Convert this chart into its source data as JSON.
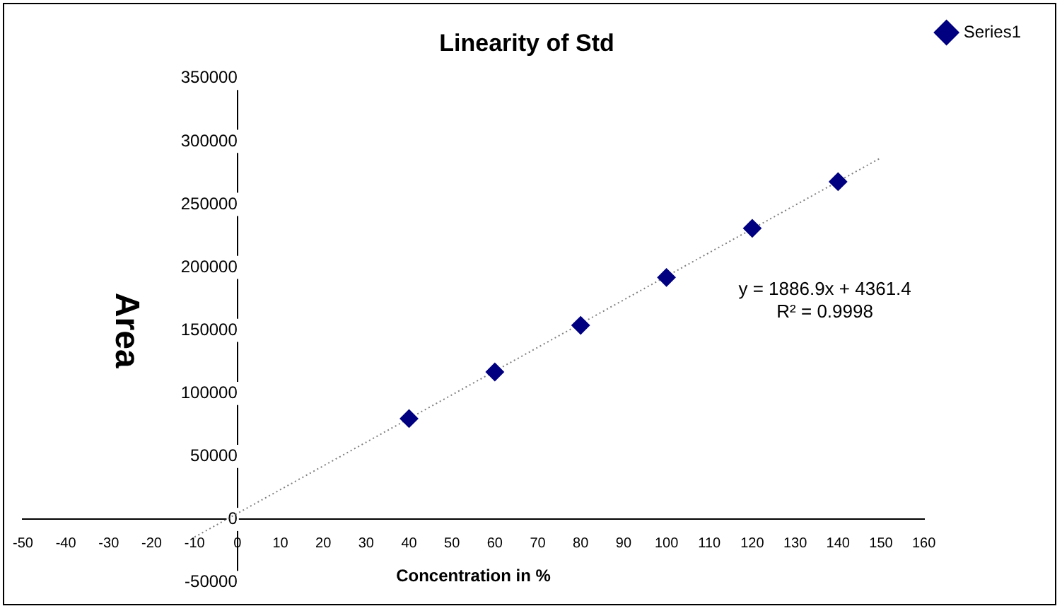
{
  "chart_data": {
    "type": "scatter",
    "title": "Linearity of Std",
    "xlabel": "Concentration in %",
    "ylabel": "Area",
    "xlim": [
      -50,
      160
    ],
    "xticks": [
      -50,
      -40,
      -30,
      -20,
      -10,
      0,
      10,
      20,
      30,
      40,
      50,
      60,
      70,
      80,
      90,
      100,
      110,
      120,
      130,
      140,
      150,
      160
    ],
    "ylim": [
      -50000,
      350000
    ],
    "yticks": [
      -50000,
      0,
      50000,
      100000,
      150000,
      200000,
      250000,
      300000,
      350000
    ],
    "x": [
      40,
      60,
      80,
      100,
      120,
      140
    ],
    "series": [
      {
        "name": "Series1",
        "color": "#000080",
        "values": [
          80000,
          117000,
          154000,
          192000,
          231000,
          268000
        ],
        "marker": "diamond"
      },
      {
        "type": "line",
        "color": "#808080",
        "line_style": "dotted",
        "marker": "none",
        "x": [
          -10,
          150
        ],
        "values": [
          -14000,
          287000
        ]
      }
    ],
    "annotations": [
      "y = 1886.9x + 4361.4",
      "R² = 0.9998"
    ],
    "legend": "top right",
    "grid": false
  }
}
